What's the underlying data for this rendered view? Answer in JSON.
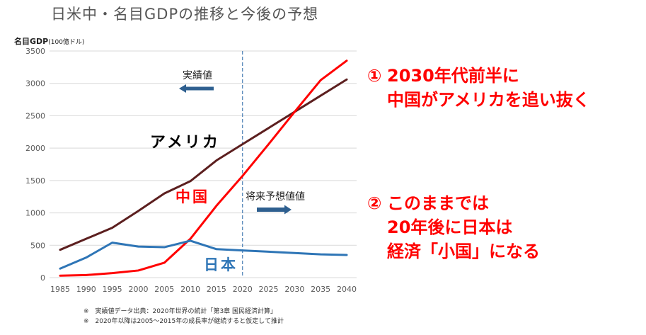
{
  "title": "日米中・名目GDPの推移と今後の予想",
  "chart_data": {
    "type": "line",
    "ylabel": "名目GDP",
    "ylabel_unit": "(100億ドル)",
    "x": [
      1985,
      1990,
      1995,
      2000,
      2005,
      2010,
      2015,
      2020,
      2025,
      2030,
      2035,
      2040
    ],
    "x_ticks": [
      "1985",
      "1990",
      "1995",
      "2000",
      "2005",
      "2010",
      "2015",
      "2020",
      "2025",
      "2030",
      "2035",
      "2040"
    ],
    "y_ticks": [
      "0",
      "500",
      "1000",
      "1500",
      "2000",
      "2500",
      "3000",
      "3500"
    ],
    "ylim": [
      0,
      3500
    ],
    "grid": true,
    "series": [
      {
        "name": "アメリカ",
        "color": "#5c1f1f",
        "values": [
          430,
          600,
          770,
          1030,
          1300,
          1490,
          1810,
          2060,
          2310,
          2560,
          2810,
          3060
        ]
      },
      {
        "name": "中国",
        "color": "#ff0000",
        "values": [
          30,
          40,
          70,
          110,
          230,
          600,
          1110,
          1570,
          2060,
          2560,
          3050,
          3350
        ]
      },
      {
        "name": "日本",
        "color": "#2e75b6",
        "values": [
          140,
          310,
          540,
          480,
          470,
          570,
          440,
          420,
          400,
          380,
          360,
          350
        ]
      }
    ],
    "divider_x": 2020,
    "annotations": {
      "actual": "実績値",
      "forecast": "将来予想値値"
    }
  },
  "callouts": [
    {
      "num": "①",
      "lines": [
        "2030年代前半に",
        "中国がアメリカを追い抜く"
      ]
    },
    {
      "num": "②",
      "lines": [
        "このままでは",
        "20年後に日本は",
        "経済「小国」になる"
      ]
    }
  ],
  "footnotes": [
    "※　実績値データ出典：2020年世界の統計「第3章 国民経済計算」",
    "※　2020年以降は2005～2015年の成長率が継続すると仮定して推計"
  ]
}
